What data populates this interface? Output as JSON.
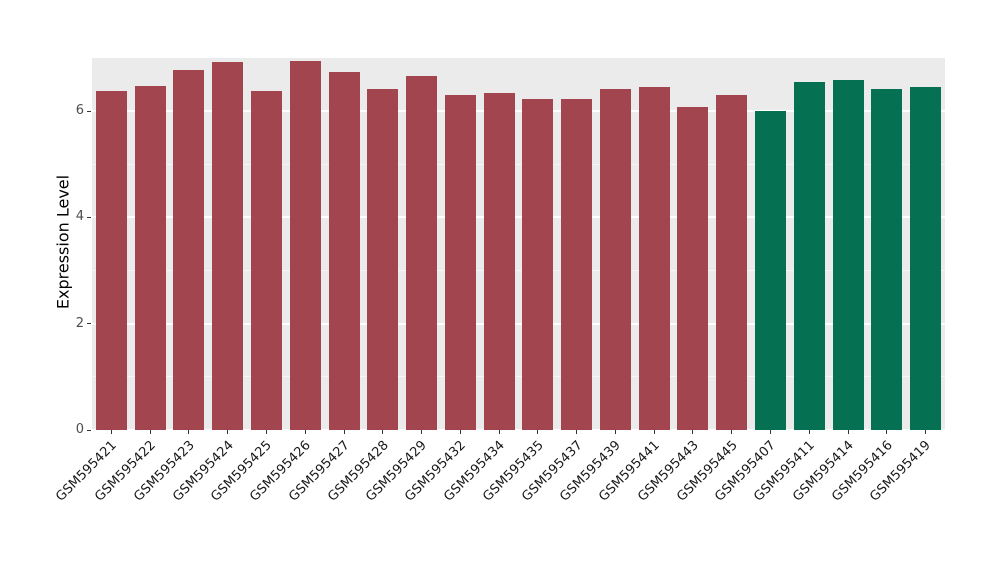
{
  "figure": {
    "background": "#FFFFFF",
    "panel_background": "#EBEBEB",
    "grid_color": "#FFFFFF",
    "tick_color": "#333333",
    "axis_text_color": "#4D4D4D"
  },
  "chart_data": {
    "type": "bar",
    "title": "",
    "xlabel": "",
    "ylabel": "Expression Level",
    "ylim": [
      0,
      7.0
    ],
    "yticks": [
      0,
      2,
      4,
      6
    ],
    "yticks_minor": [
      1,
      3,
      5
    ],
    "grid": true,
    "legend_position": "none",
    "categories": [
      "GSM595421",
      "GSM595422",
      "GSM595423",
      "GSM595424",
      "GSM595425",
      "GSM595426",
      "GSM595427",
      "GSM595428",
      "GSM595429",
      "GSM595432",
      "GSM595434",
      "GSM595435",
      "GSM595437",
      "GSM595439",
      "GSM595441",
      "GSM595443",
      "GSM595445",
      "GSM595407",
      "GSM595411",
      "GSM595414",
      "GSM595416",
      "GSM595419"
    ],
    "values": [
      6.38,
      6.48,
      6.77,
      6.92,
      6.38,
      6.95,
      6.74,
      6.42,
      6.67,
      6.31,
      6.34,
      6.22,
      6.22,
      6.42,
      6.46,
      6.08,
      6.31,
      6.0,
      6.55,
      6.58,
      6.41,
      6.45
    ],
    "bar_groups": [
      {
        "color": "#A3454F",
        "count": 17
      },
      {
        "color": "#067052",
        "count": 5
      }
    ]
  }
}
